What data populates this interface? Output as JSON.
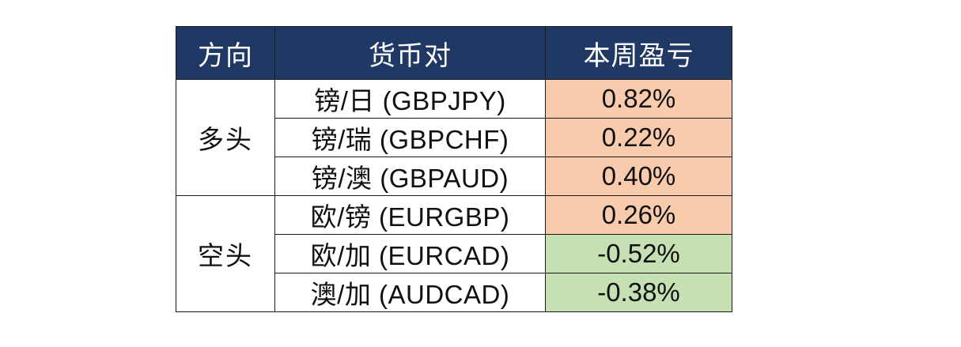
{
  "header": {
    "direction": "方向",
    "pair": "货币对",
    "pnl": "本周盈亏"
  },
  "groups": [
    {
      "direction": "多头",
      "rows": [
        {
          "pair": "镑/日 (GBPJPY)",
          "pnl": "0.82%",
          "status": "positive"
        },
        {
          "pair": "镑/瑞 (GBPCHF)",
          "pnl": "0.22%",
          "status": "positive"
        },
        {
          "pair": "镑/澳 (GBPAUD)",
          "pnl": "0.40%",
          "status": "positive"
        }
      ]
    },
    {
      "direction": "空头",
      "rows": [
        {
          "pair": "欧/镑 (EURGBP)",
          "pnl": "0.26%",
          "status": "positive"
        },
        {
          "pair": "欧/加 (EURCAD)",
          "pnl": "-0.52%",
          "status": "negative"
        },
        {
          "pair": "澳/加 (AUDCAD)",
          "pnl": "-0.38%",
          "status": "negative"
        }
      ]
    }
  ],
  "colors": {
    "header_bg": "#1f3864",
    "positive_bg": "#f8cbad",
    "negative_bg": "#c6e0b4"
  }
}
